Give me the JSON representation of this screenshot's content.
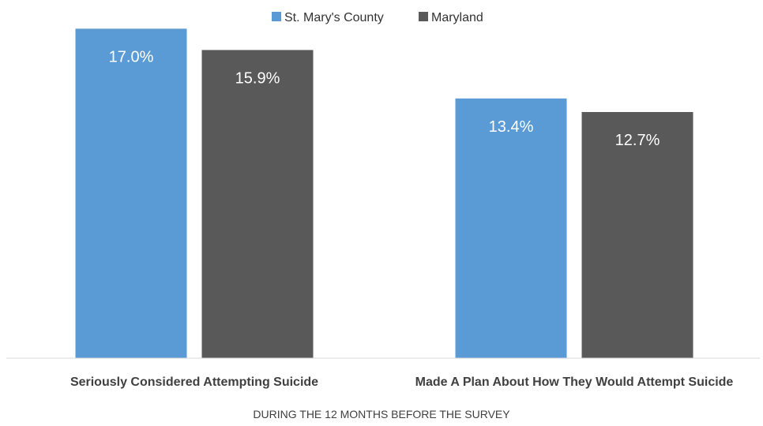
{
  "chart_data": {
    "type": "bar",
    "categories": [
      "Seriously Considered Attempting Suicide",
      "Made A Plan About How They Would Attempt Suicide"
    ],
    "series": [
      {
        "name": "St. Mary's County",
        "color": "#5b9bd5",
        "values": [
          17.0,
          13.4
        ],
        "labels": [
          "17.0%",
          "13.4%"
        ]
      },
      {
        "name": "Maryland",
        "color": "#595959",
        "values": [
          15.9,
          12.7
        ],
        "labels": [
          "15.9%",
          "12.7%"
        ]
      }
    ],
    "xlabel": "DURING THE 12 MONTHS BEFORE THE SURVEY",
    "ylabel": "",
    "ylim": [
      0,
      17.3
    ],
    "grid": false,
    "legend": "top-center"
  }
}
